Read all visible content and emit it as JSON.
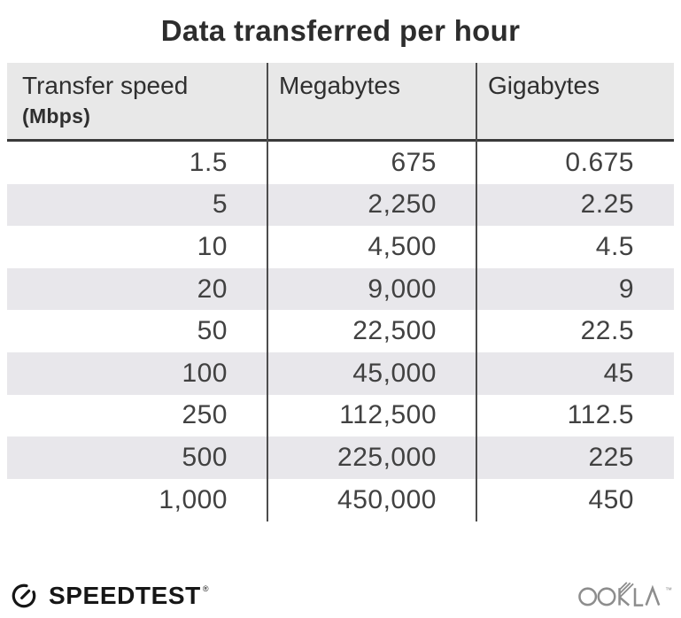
{
  "title": "Data transferred per hour",
  "table": {
    "header": {
      "col1_label": "Transfer speed",
      "col1_sublabel": "(Mbps)",
      "col2_label": "Megabytes",
      "col3_label": "Gigabytes"
    },
    "rows": [
      [
        "1.5",
        "675",
        "0.675"
      ],
      [
        "5",
        "2,250",
        "2.25"
      ],
      [
        "10",
        "4,500",
        "4.5"
      ],
      [
        "20",
        "9,000",
        "9"
      ],
      [
        "50",
        "22,500",
        "22.5"
      ],
      [
        "100",
        "45,000",
        "45"
      ],
      [
        "250",
        "112,500",
        "112.5"
      ],
      [
        "500",
        "225,000",
        "225"
      ],
      [
        "1,000",
        "450,000",
        "450"
      ]
    ]
  },
  "chart_data": {
    "type": "table",
    "title": "Data transferred per hour",
    "columns": [
      "Transfer speed (Mbps)",
      "Megabytes",
      "Gigabytes"
    ],
    "rows": [
      [
        1.5,
        675,
        0.675
      ],
      [
        5,
        2250,
        2.25
      ],
      [
        10,
        4500,
        4.5
      ],
      [
        20,
        9000,
        9
      ],
      [
        50,
        22500,
        22.5
      ],
      [
        100,
        45000,
        45
      ],
      [
        250,
        112500,
        112.5
      ],
      [
        500,
        225000,
        225
      ],
      [
        1000,
        450000,
        450
      ]
    ],
    "layout_hints": {
      "stripes": "alternating rows shaded starting with second row",
      "column_dividers": true,
      "value_alignment": "right"
    }
  },
  "footer": {
    "speedtest_label": "SPEEDTEST",
    "speedtest_reg_mark": "®",
    "ookla_label": "OOKLA",
    "ookla_tm_mark": "™"
  },
  "colors": {
    "header_bg": "#e8e8e8",
    "stripe_bg": "#e8e7eb",
    "column_divider": "#4d4d4d",
    "header_underline": "#3a3a3a",
    "title_text": "#2d2d2d",
    "body_text": "#414141",
    "speedtest_black": "#161616",
    "ookla_gray": "#8d8d8d"
  }
}
